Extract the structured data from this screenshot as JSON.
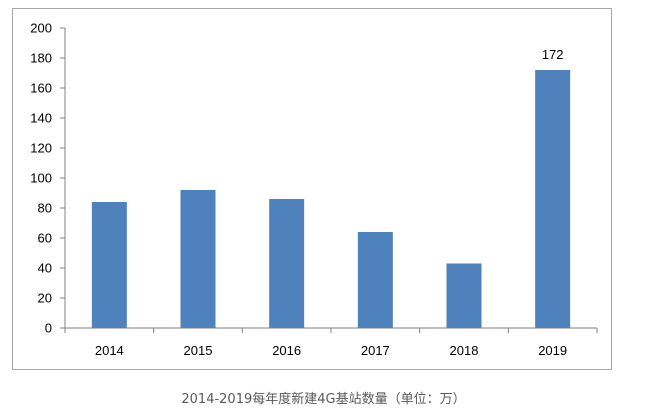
{
  "chart_data": {
    "type": "bar",
    "categories": [
      "2014",
      "2015",
      "2016",
      "2017",
      "2018",
      "2019"
    ],
    "values": [
      84,
      92,
      86,
      64,
      43,
      172
    ],
    "data_labels": {
      "2019": "172"
    },
    "title": "",
    "xlabel": "",
    "ylabel": "",
    "ylim": [
      0,
      200
    ],
    "yticks": [
      "0",
      "20",
      "40",
      "60",
      "80",
      "100",
      "120",
      "140",
      "160",
      "180",
      "200"
    ],
    "grid": false,
    "legend": "none",
    "bar_color": "#4f81bd"
  },
  "caption": "2014-2019每年度新建4G基站数量（单位：万）"
}
